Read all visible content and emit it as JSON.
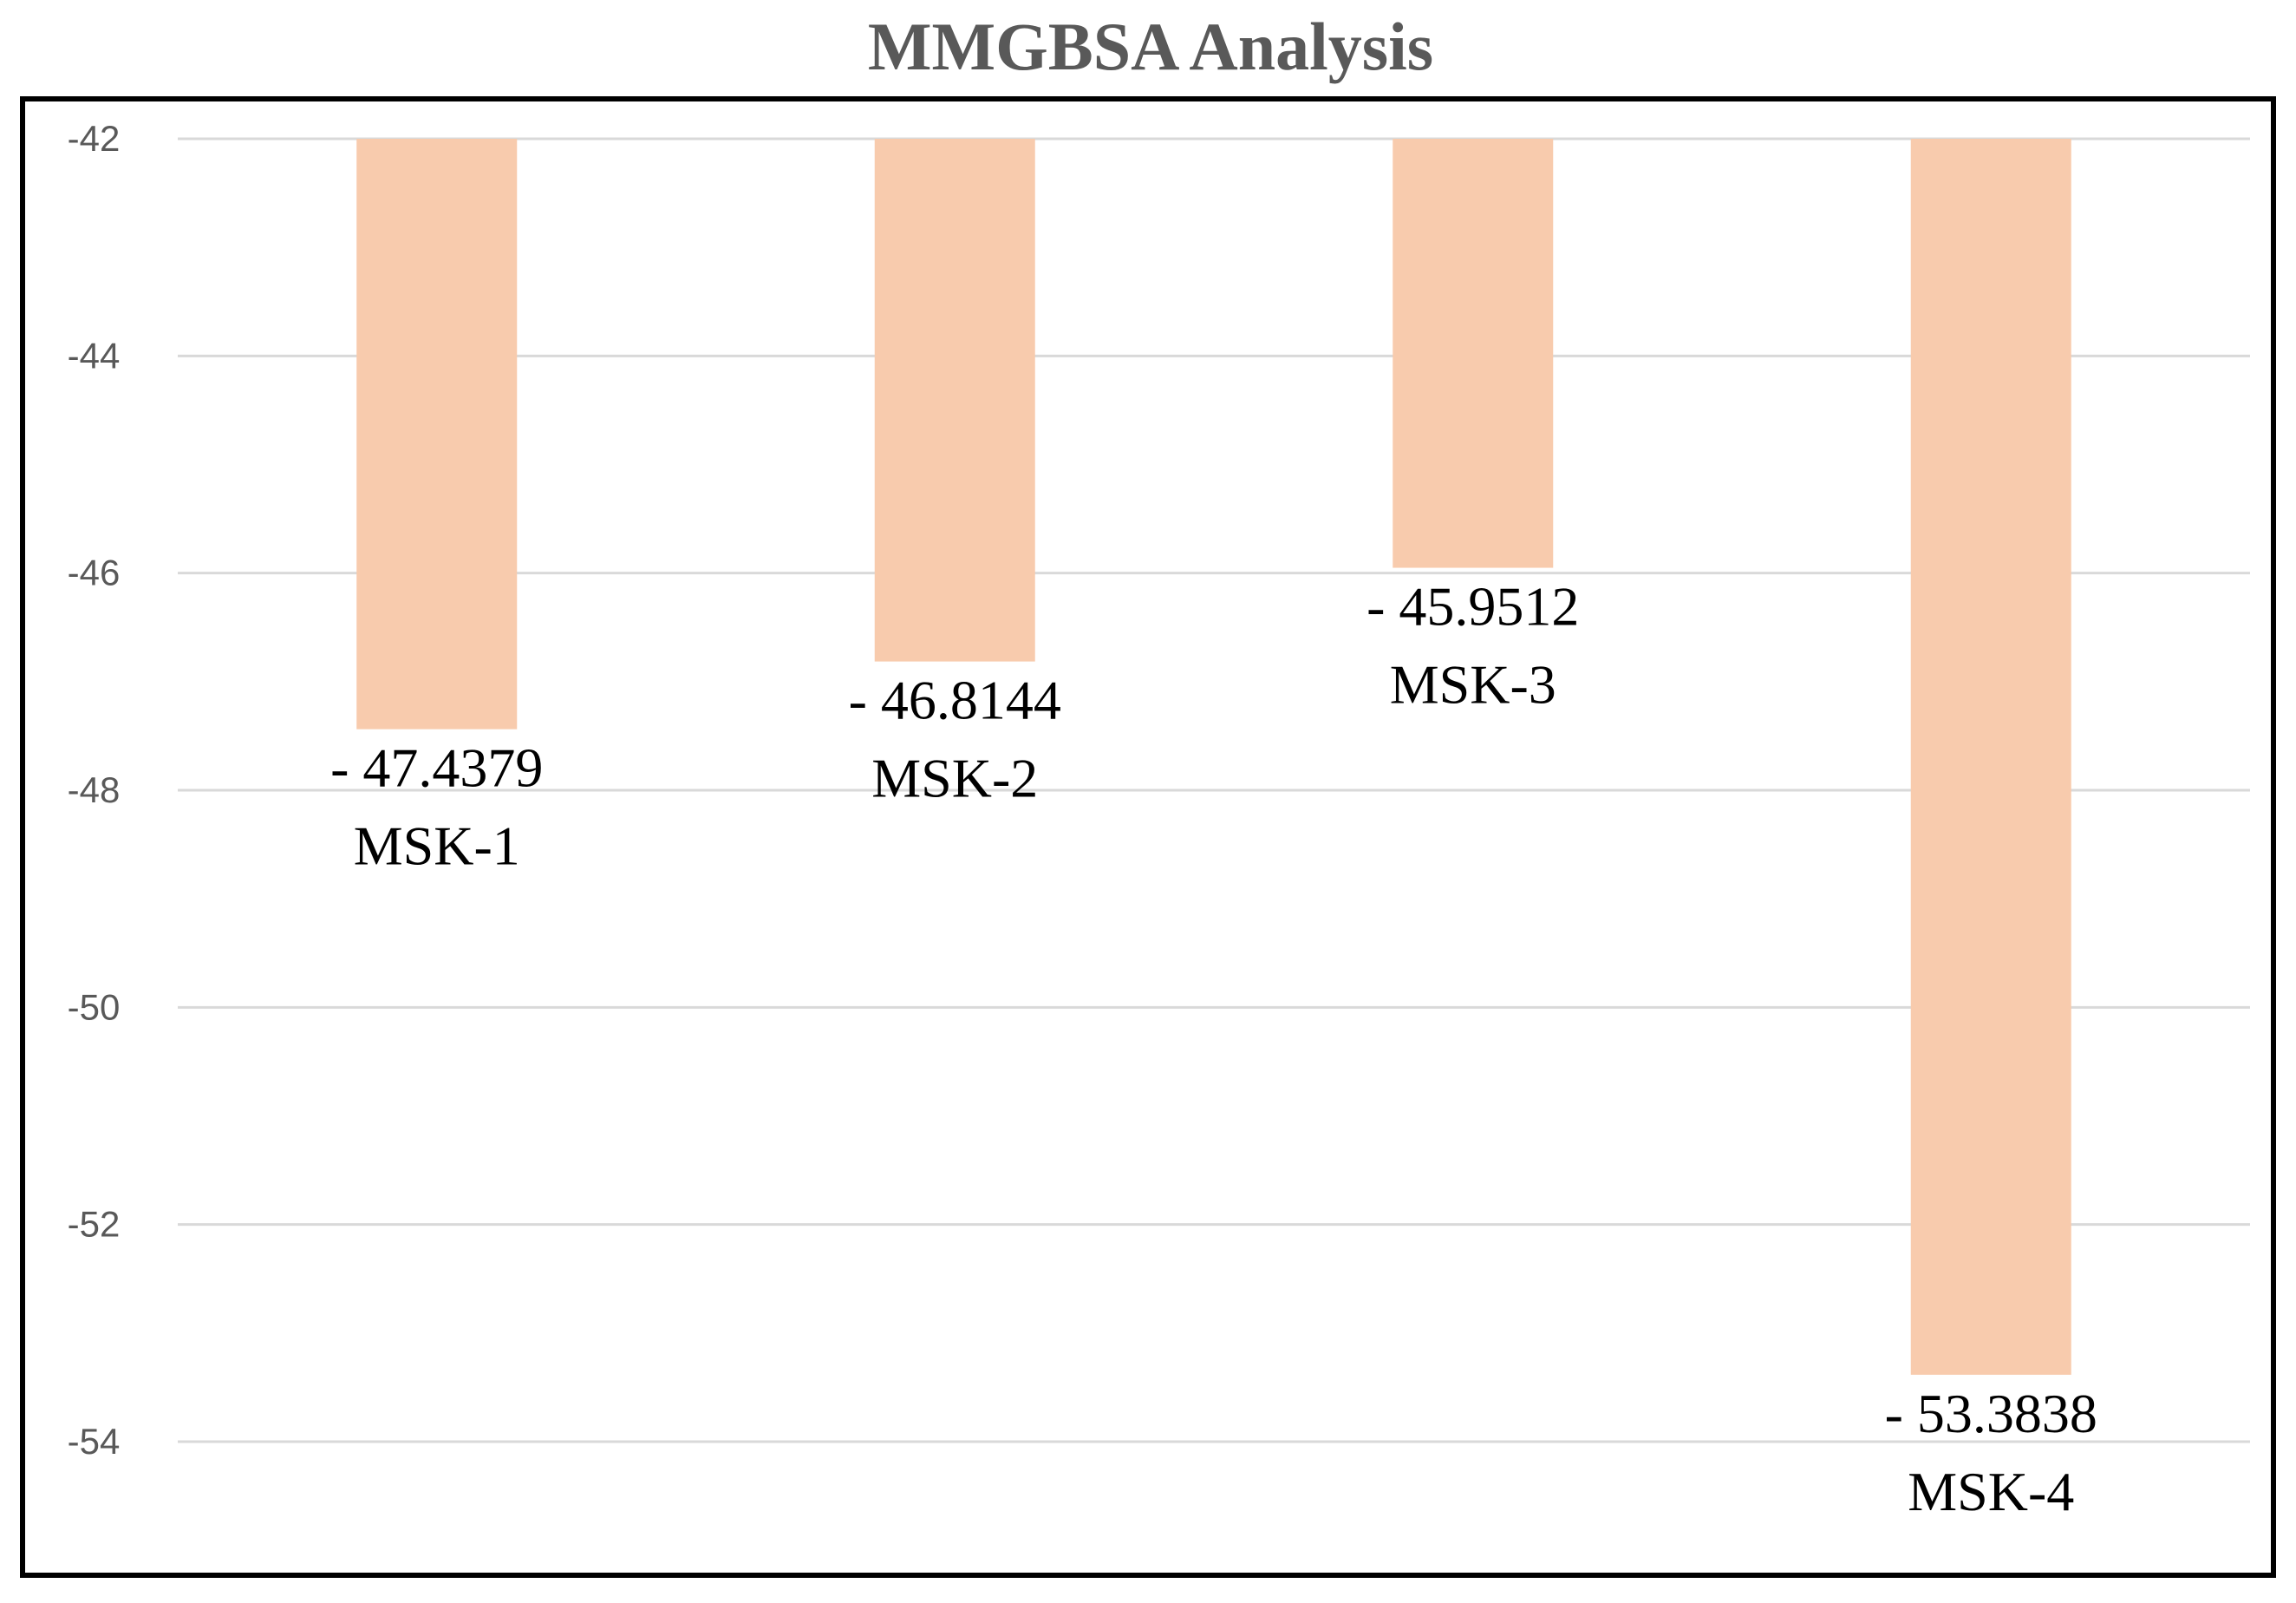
{
  "chart_data": {
    "type": "bar",
    "title": "MMGBSA Analysis",
    "xlabel": "",
    "ylabel": "",
    "categories": [
      "MSK-1",
      "MSK-2",
      "MSK-3",
      "MSK-4"
    ],
    "values": [
      -47.4379,
      -46.8144,
      -45.9512,
      -53.3838
    ],
    "data_labels": [
      "- 47.4379",
      "- 46.8144",
      "- 45.9512",
      "- 53.3838"
    ],
    "ylim": [
      -54,
      -42
    ],
    "yticks": [
      -42,
      -44,
      -46,
      -48,
      -50,
      -52,
      -54
    ],
    "ytick_labels": [
      "-42",
      "-44",
      "-46",
      "-48",
      "-50",
      "-52",
      "-54"
    ],
    "bar_origin": -42,
    "grid": true,
    "legend": "none",
    "colors": {
      "bar": "#f8cbad",
      "grid": "#d9d9d9",
      "frame": "#000000",
      "text": "#595959"
    }
  }
}
